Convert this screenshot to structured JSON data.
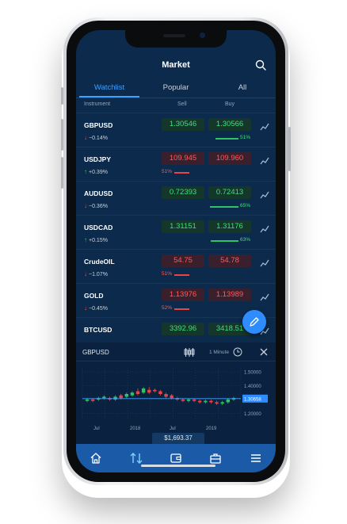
{
  "header": {
    "title": "Market"
  },
  "tabs": [
    {
      "label": "Watchlist",
      "active": true
    },
    {
      "label": "Popular",
      "active": false
    },
    {
      "label": "All",
      "active": false
    }
  ],
  "columns": {
    "instrument": "Instrument",
    "sell": "Sell",
    "buy": "Buy"
  },
  "rows": [
    {
      "symbol": "GBPUSD",
      "direction": "down",
      "change": "−0.14%",
      "sell": "1.30546",
      "buy": "1.30566",
      "sell_color": "green",
      "buy_color": "green",
      "sentiment": "51%",
      "sentiment_side": "buy",
      "sentiment_fraction": 0.51
    },
    {
      "symbol": "USDJPY",
      "direction": "up",
      "change": "+0.39%",
      "sell": "109.945",
      "buy": "109.960",
      "sell_color": "red",
      "buy_color": "red",
      "sentiment": "51%",
      "sentiment_side": "sell",
      "sentiment_fraction": 0.51
    },
    {
      "symbol": "AUDUSD",
      "direction": "down",
      "change": "−0.36%",
      "sell": "0.72393",
      "buy": "0.72413",
      "sell_color": "green",
      "buy_color": "green",
      "sentiment": "65%",
      "sentiment_side": "buy",
      "sentiment_fraction": 0.65
    },
    {
      "symbol": "USDCAD",
      "direction": "up",
      "change": "+0.15%",
      "sell": "1.31151",
      "buy": "1.31176",
      "sell_color": "green",
      "buy_color": "green",
      "sentiment": "63%",
      "sentiment_side": "buy",
      "sentiment_fraction": 0.63
    },
    {
      "symbol": "CrudeOIL",
      "direction": "down",
      "change": "−1.07%",
      "sell": "54.75",
      "buy": "54.78",
      "sell_color": "red",
      "buy_color": "red",
      "sentiment": "51%",
      "sentiment_side": "sell",
      "sentiment_fraction": 0.51
    },
    {
      "symbol": "GOLD",
      "direction": "down",
      "change": "−0.45%",
      "sell": "1.13976",
      "buy": "1.13989",
      "sell_color": "red",
      "buy_color": "red",
      "sentiment": "52%",
      "sentiment_side": "sell",
      "sentiment_fraction": 0.52
    },
    {
      "symbol": "BTCUSD",
      "direction": "",
      "change": "",
      "sell": "3392.96",
      "buy": "3418.51",
      "sell_color": "green",
      "buy_color": "green",
      "sentiment": "",
      "sentiment_side": "",
      "sentiment_fraction": 0
    }
  ],
  "chart_panel": {
    "symbol": "GBPUSD",
    "interval": "1 Minute",
    "y_labels": [
      "1.50000",
      "1.40000",
      "1.30658",
      "1.20000"
    ],
    "x_labels": [
      "Jul",
      "2018",
      "Jul",
      "2019"
    ],
    "current_price": "1.30658"
  },
  "chart_data": {
    "type": "candlestick",
    "y_ticks": [
      1.5,
      1.4,
      1.3,
      1.2
    ],
    "ylim": [
      1.15,
      1.53
    ],
    "x_tick_labels": [
      "Jul",
      "2018",
      "Jul",
      "2019"
    ],
    "current_price": 1.30658,
    "candles": [
      {
        "o": 1.29,
        "c": 1.3,
        "h": 1.31,
        "l": 1.28
      },
      {
        "o": 1.3,
        "c": 1.29,
        "h": 1.31,
        "l": 1.28
      },
      {
        "o": 1.3,
        "c": 1.31,
        "h": 1.32,
        "l": 1.29
      },
      {
        "o": 1.31,
        "c": 1.32,
        "h": 1.33,
        "l": 1.3
      },
      {
        "o": 1.31,
        "c": 1.3,
        "h": 1.32,
        "l": 1.29
      },
      {
        "o": 1.3,
        "c": 1.32,
        "h": 1.33,
        "l": 1.29
      },
      {
        "o": 1.33,
        "c": 1.31,
        "h": 1.34,
        "l": 1.3
      },
      {
        "o": 1.32,
        "c": 1.34,
        "h": 1.35,
        "l": 1.31
      },
      {
        "o": 1.33,
        "c": 1.35,
        "h": 1.36,
        "l": 1.32
      },
      {
        "o": 1.36,
        "c": 1.34,
        "h": 1.38,
        "l": 1.33
      },
      {
        "o": 1.35,
        "c": 1.38,
        "h": 1.39,
        "l": 1.34
      },
      {
        "o": 1.37,
        "c": 1.35,
        "h": 1.39,
        "l": 1.34
      },
      {
        "o": 1.37,
        "c": 1.36,
        "h": 1.38,
        "l": 1.35
      },
      {
        "o": 1.36,
        "c": 1.34,
        "h": 1.37,
        "l": 1.33
      },
      {
        "o": 1.34,
        "c": 1.32,
        "h": 1.35,
        "l": 1.31
      },
      {
        "o": 1.33,
        "c": 1.31,
        "h": 1.34,
        "l": 1.3
      },
      {
        "o": 1.31,
        "c": 1.3,
        "h": 1.32,
        "l": 1.29
      },
      {
        "o": 1.3,
        "c": 1.29,
        "h": 1.31,
        "l": 1.28
      },
      {
        "o": 1.29,
        "c": 1.3,
        "h": 1.31,
        "l": 1.28
      },
      {
        "o": 1.3,
        "c": 1.29,
        "h": 1.31,
        "l": 1.28
      },
      {
        "o": 1.29,
        "c": 1.28,
        "h": 1.3,
        "l": 1.27
      },
      {
        "o": 1.28,
        "c": 1.29,
        "h": 1.3,
        "l": 1.27
      },
      {
        "o": 1.29,
        "c": 1.28,
        "h": 1.3,
        "l": 1.27
      },
      {
        "o": 1.28,
        "c": 1.27,
        "h": 1.29,
        "l": 1.26
      },
      {
        "o": 1.27,
        "c": 1.28,
        "h": 1.29,
        "l": 1.26
      },
      {
        "o": 1.28,
        "c": 1.3,
        "h": 1.31,
        "l": 1.27
      },
      {
        "o": 1.3,
        "c": 1.31,
        "h": 1.32,
        "l": 1.29
      }
    ]
  },
  "balance": "$1,693.37",
  "nav": [
    {
      "icon": "home-icon"
    },
    {
      "icon": "transfer-arrows-icon"
    },
    {
      "icon": "wallet-icon"
    },
    {
      "icon": "briefcase-icon"
    },
    {
      "icon": "menu-icon"
    }
  ],
  "colors": {
    "green": "#3fe07a",
    "red": "#ff5a5a",
    "accent": "#3da1ff",
    "nav": "#1a5aa7",
    "screen_bg": "#0c2a4b"
  }
}
